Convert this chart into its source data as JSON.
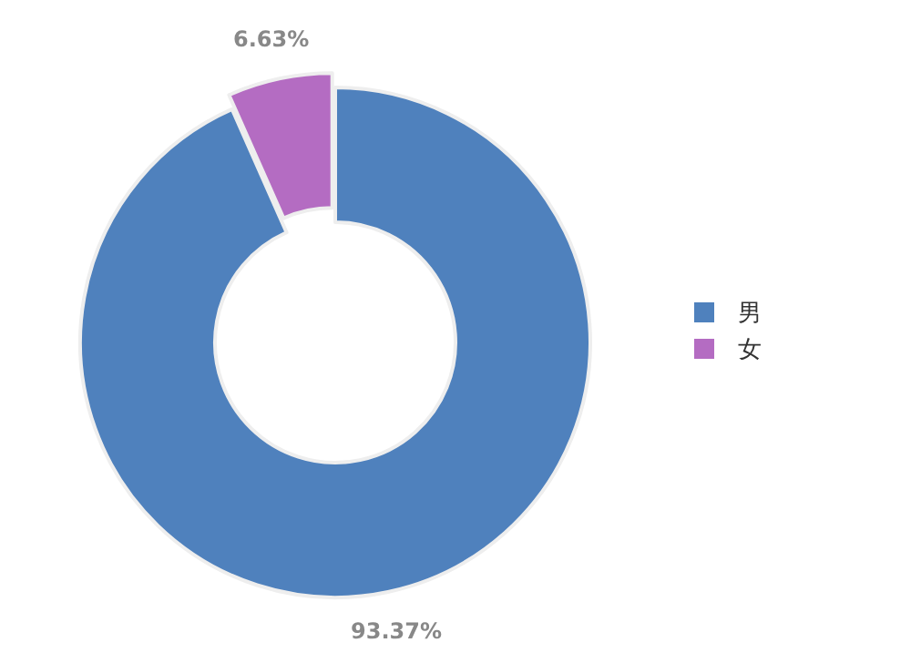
{
  "chart_data": {
    "type": "donut",
    "categories": [
      "男",
      "女"
    ],
    "values": [
      93.37,
      6.63
    ],
    "colors": [
      "#4f81bd",
      "#b46cc2"
    ],
    "value_labels": [
      "93.37%",
      "6.63%"
    ],
    "legend": "right"
  }
}
